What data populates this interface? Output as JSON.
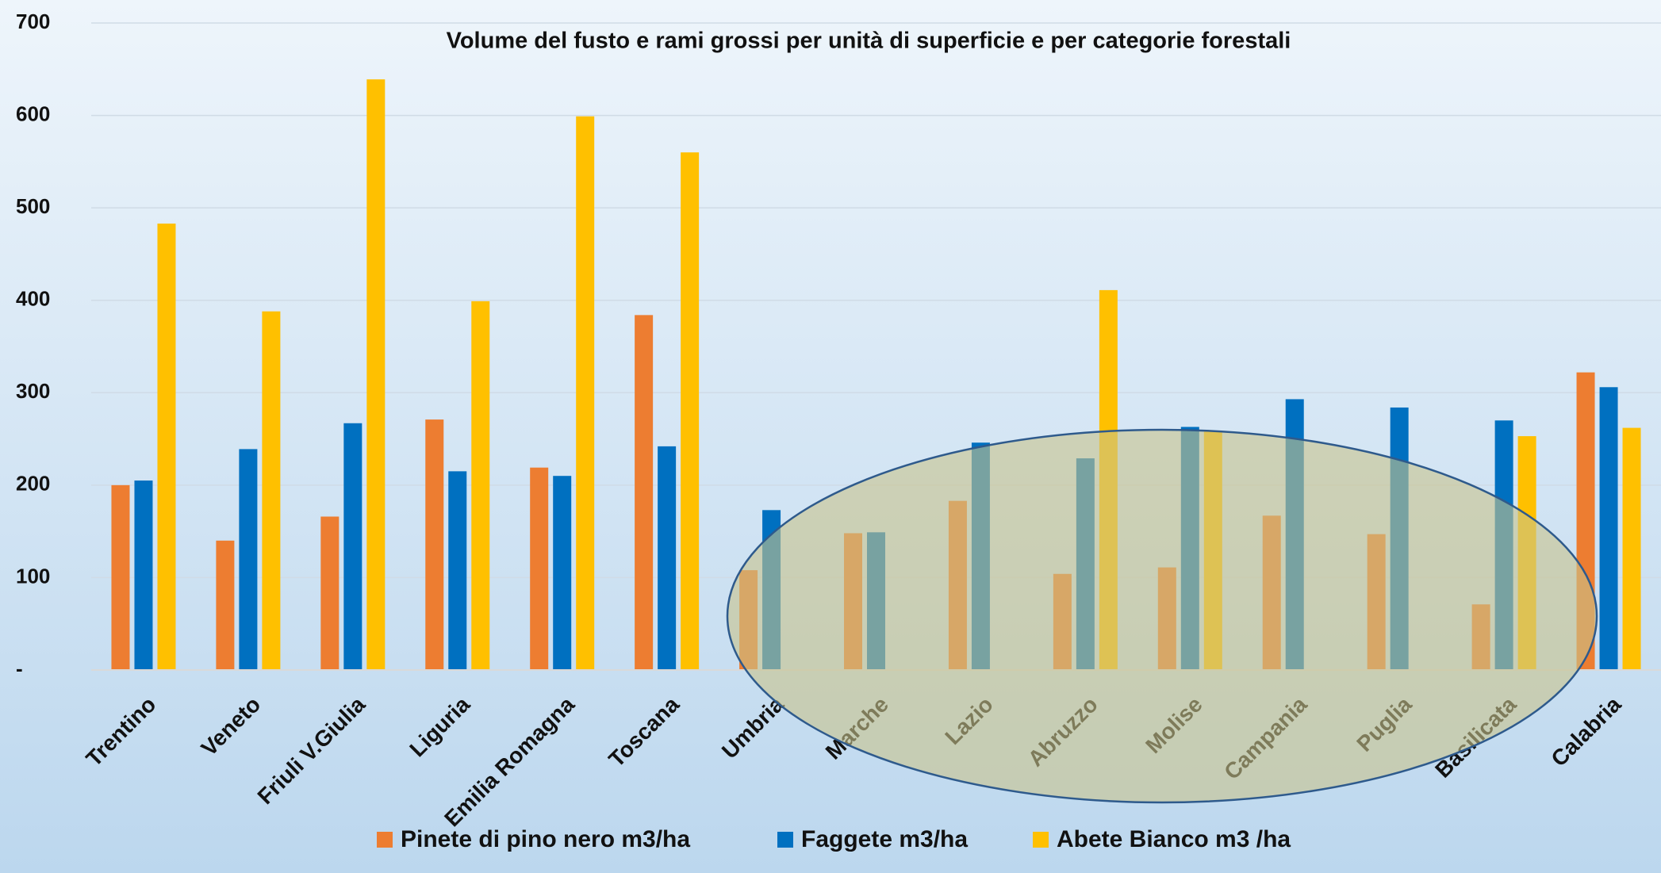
{
  "chart_data": {
    "type": "bar",
    "title": "Volume del fusto e rami grossi per unità di superficie e per categorie forestali",
    "categories": [
      "Trentino",
      "Veneto",
      "Friuli V.Giulia",
      "Liguria",
      "Emilia Romagna",
      "Toscana",
      "Umbria",
      "Marche",
      "Lazio",
      "Abruzzo",
      "Molise",
      "Campania",
      "Puglia",
      "Basilicata",
      "Calabria"
    ],
    "series": [
      {
        "name": "Pinete di pino nero m3/ha",
        "color": "#ed7d31",
        "values": [
          200,
          140,
          166,
          271,
          219,
          384,
          108,
          148,
          183,
          104,
          111,
          167,
          147,
          71,
          322
        ]
      },
      {
        "name": "Faggete m3/ha",
        "color": "#0070c0",
        "values": [
          205,
          239,
          267,
          215,
          210,
          242,
          173,
          149,
          246,
          229,
          263,
          293,
          284,
          270,
          306
        ]
      },
      {
        "name": "Abete Bianco m3 /ha",
        "color": "#ffc000",
        "values": [
          483,
          388,
          639,
          399,
          599,
          560,
          null,
          null,
          null,
          411,
          258,
          null,
          null,
          253,
          262
        ]
      }
    ],
    "ylim": [
      0,
      700
    ],
    "yticks": [
      {
        "value": 0,
        "label": "-"
      },
      100,
      200,
      300,
      400,
      500,
      600,
      700
    ],
    "grid": true
  }
}
